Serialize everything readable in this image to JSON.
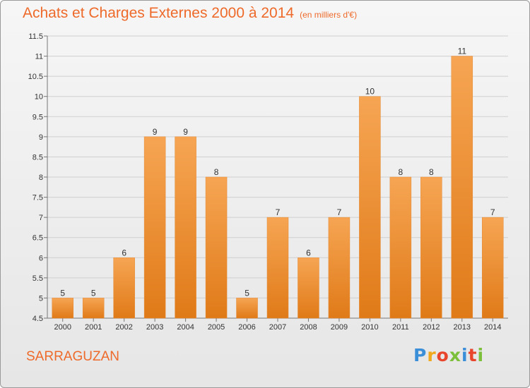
{
  "header": {
    "title": "Achats et Charges Externes 2000 à 2014",
    "subtitle": "(en milliers d'€)"
  },
  "footer": {
    "town": "SARRAGUZAN",
    "logo": [
      "P",
      "r",
      "o",
      "x",
      "i",
      "t",
      "i"
    ],
    "logo_colors": [
      "#3b8fd9",
      "#f0a81c",
      "#e8452c",
      "#7cbf3a",
      "#3b8fd9",
      "#e8452c",
      "#7cbf3a"
    ]
  },
  "colors": {
    "accent": "#ee6a2a",
    "bar_light": "#f6a553",
    "bar_dark": "#e07a18"
  },
  "chart_data": {
    "type": "bar",
    "categories": [
      "2000",
      "2001",
      "2002",
      "2003",
      "2004",
      "2005",
      "2006",
      "2007",
      "2008",
      "2009",
      "2010",
      "2011",
      "2012",
      "2013",
      "2014"
    ],
    "values": [
      5,
      5,
      6,
      9,
      9,
      8,
      5,
      7,
      6,
      7,
      10,
      8,
      8,
      11,
      7
    ],
    "data_labels": [
      "5",
      "5",
      "6",
      "9",
      "9",
      "8",
      "5",
      "7",
      "6",
      "7",
      "10",
      "8",
      "8",
      "11",
      "7"
    ],
    "ylim": [
      4.5,
      11.5
    ],
    "yticks": [
      "4.5",
      "5",
      "5.5",
      "6",
      "6.5",
      "7",
      "7.5",
      "8",
      "8.5",
      "9",
      "9.5",
      "10",
      "10.5",
      "11",
      "11.5"
    ],
    "grid": true,
    "xlabel": "",
    "ylabel": ""
  }
}
